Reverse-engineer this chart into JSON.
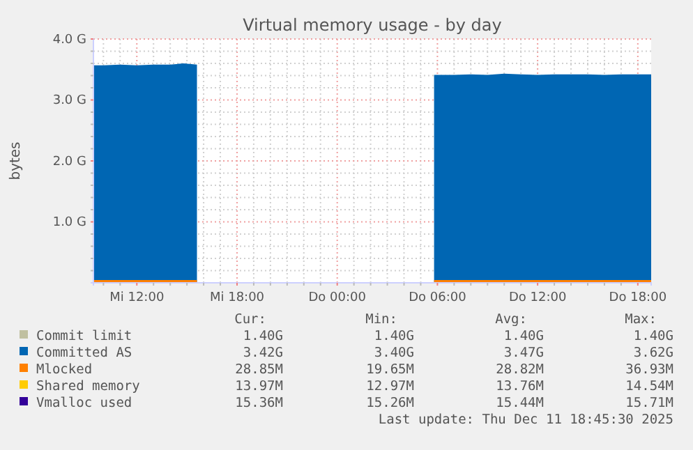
{
  "chart_data": {
    "type": "area",
    "title": "Virtual memory usage - by day",
    "ylabel": "bytes",
    "xlim": [
      "2025-12-10T09:24",
      "2025-12-11T18:48"
    ],
    "ylim": [
      0,
      4
    ],
    "xticks": [
      {
        "value": "2025-12-10T10:00",
        "label": null
      },
      {
        "value": "2025-12-10T11:00",
        "label": null
      },
      {
        "value": "2025-12-10T12:00",
        "label": "Mi 12:00"
      },
      {
        "value": "2025-12-10T13:00",
        "label": null
      },
      {
        "value": "2025-12-10T14:00",
        "label": null
      },
      {
        "value": "2025-12-10T15:00",
        "label": null
      },
      {
        "value": "2025-12-10T16:00",
        "label": null
      },
      {
        "value": "2025-12-10T17:00",
        "label": null
      },
      {
        "value": "2025-12-10T18:00",
        "label": "Mi 18:00"
      },
      {
        "value": "2025-12-10T19:00",
        "label": null
      },
      {
        "value": "2025-12-10T20:00",
        "label": null
      },
      {
        "value": "2025-12-10T21:00",
        "label": null
      },
      {
        "value": "2025-12-10T22:00",
        "label": null
      },
      {
        "value": "2025-12-10T23:00",
        "label": null
      },
      {
        "value": "2025-12-11T00:00",
        "label": "Do 00:00"
      },
      {
        "value": "2025-12-11T01:00",
        "label": null
      },
      {
        "value": "2025-12-11T02:00",
        "label": null
      },
      {
        "value": "2025-12-11T03:00",
        "label": null
      },
      {
        "value": "2025-12-11T04:00",
        "label": null
      },
      {
        "value": "2025-12-11T05:00",
        "label": null
      },
      {
        "value": "2025-12-11T06:00",
        "label": "Do 06:00"
      },
      {
        "value": "2025-12-11T07:00",
        "label": null
      },
      {
        "value": "2025-12-11T08:00",
        "label": null
      },
      {
        "value": "2025-12-11T09:00",
        "label": null
      },
      {
        "value": "2025-12-11T10:00",
        "label": null
      },
      {
        "value": "2025-12-11T11:00",
        "label": null
      },
      {
        "value": "2025-12-11T12:00",
        "label": "Do 12:00"
      },
      {
        "value": "2025-12-11T13:00",
        "label": null
      },
      {
        "value": "2025-12-11T14:00",
        "label": null
      },
      {
        "value": "2025-12-11T15:00",
        "label": null
      },
      {
        "value": "2025-12-11T16:00",
        "label": null
      },
      {
        "value": "2025-12-11T17:00",
        "label": null
      },
      {
        "value": "2025-12-11T18:00",
        "label": "Do 18:00"
      }
    ],
    "yticks": [
      {
        "value": 0.2,
        "label": null
      },
      {
        "value": 0.4,
        "label": null
      },
      {
        "value": 0.6,
        "label": null
      },
      {
        "value": 0.8,
        "label": null
      },
      {
        "value": 1,
        "label": "1.0 G"
      },
      {
        "value": 1.2,
        "label": null
      },
      {
        "value": 1.4,
        "label": null
      },
      {
        "value": 1.6,
        "label": null
      },
      {
        "value": 1.8,
        "label": null
      },
      {
        "value": 2,
        "label": "2.0 G"
      },
      {
        "value": 2.2,
        "label": null
      },
      {
        "value": 2.4,
        "label": null
      },
      {
        "value": 2.6,
        "label": null
      },
      {
        "value": 2.8,
        "label": null
      },
      {
        "value": 3,
        "label": "3.0 G"
      },
      {
        "value": 3.2,
        "label": null
      },
      {
        "value": 3.4,
        "label": null
      },
      {
        "value": 3.6,
        "label": null
      },
      {
        "value": 3.8,
        "label": null
      },
      {
        "value": 4,
        "label": "4.0 G"
      }
    ],
    "grid": true,
    "legend": "bottom",
    "x": [
      "2025-12-10T09:24",
      "2025-12-10T10:00",
      "2025-12-10T11:00",
      "2025-12-10T12:00",
      "2025-12-10T13:00",
      "2025-12-10T14:00",
      "2025-12-10T14:48",
      "2025-12-10T15:36",
      "2025-12-10T16:00",
      "2025-12-11T05:48",
      "2025-12-11T07:00",
      "2025-12-11T08:00",
      "2025-12-11T09:00",
      "2025-12-11T10:00",
      "2025-12-11T11:00",
      "2025-12-11T12:00",
      "2025-12-11T13:00",
      "2025-12-11T14:00",
      "2025-12-11T15:00",
      "2025-12-11T16:00",
      "2025-12-11T17:00",
      "2025-12-11T18:00",
      "2025-12-11T18:48"
    ],
    "series": [
      {
        "name": "Commit limit",
        "color": "#c0c0a0",
        "type": "line",
        "values": [
          null,
          null,
          null,
          null,
          null,
          null,
          null,
          null,
          null,
          null,
          null,
          null,
          null,
          null,
          null,
          null,
          null,
          null,
          null,
          null,
          null,
          null,
          null
        ]
      },
      {
        "name": "Committed AS",
        "color": "#0066b3",
        "values": [
          3.57,
          3.57,
          3.58,
          3.57,
          3.58,
          3.58,
          3.6,
          3.58,
          null,
          3.41,
          3.41,
          3.42,
          3.41,
          3.43,
          3.42,
          3.41,
          3.42,
          3.42,
          3.42,
          3.41,
          3.42,
          3.42,
          3.42
        ]
      },
      {
        "name": "Mlocked",
        "color": "#ff8000",
        "type": "line",
        "values": [
          0.03,
          0.03,
          0.03,
          0.03,
          0.03,
          0.03,
          0.03,
          0.03,
          null,
          0.03,
          0.03,
          0.03,
          0.03,
          0.03,
          0.03,
          0.03,
          0.03,
          0.03,
          0.03,
          0.03,
          0.03,
          0.03,
          0.03
        ]
      },
      {
        "name": "Shared memory",
        "color": "#ffcc00",
        "type": "line",
        "values": [
          null,
          null,
          null,
          null,
          null,
          null,
          null,
          null,
          null,
          null,
          null,
          null,
          null,
          null,
          null,
          null,
          null,
          null,
          null,
          null,
          null,
          null,
          null
        ]
      },
      {
        "name": "Vmalloc used",
        "color": "#330099",
        "type": "line",
        "values": [
          null,
          null,
          null,
          null,
          null,
          null,
          null,
          null,
          null,
          null,
          null,
          null,
          null,
          null,
          null,
          null,
          null,
          null,
          null,
          null,
          null,
          null,
          null
        ]
      }
    ],
    "annotations": [
      "Cur:",
      "Min:",
      "Avg:",
      "Max:",
      "1.40G",
      "1.40G",
      "1.40G",
      "1.40G",
      "3.42G",
      "3.40G",
      "3.47G",
      "3.62G",
      "28.85M",
      "19.65M",
      "28.82M",
      "36.93M",
      "13.97M",
      "12.97M",
      "13.76M",
      "14.54M",
      "15.36M",
      "15.26M",
      "15.44M",
      "15.71M",
      "Last update: Thu Dec 11 18:45:30 2025"
    ]
  }
}
